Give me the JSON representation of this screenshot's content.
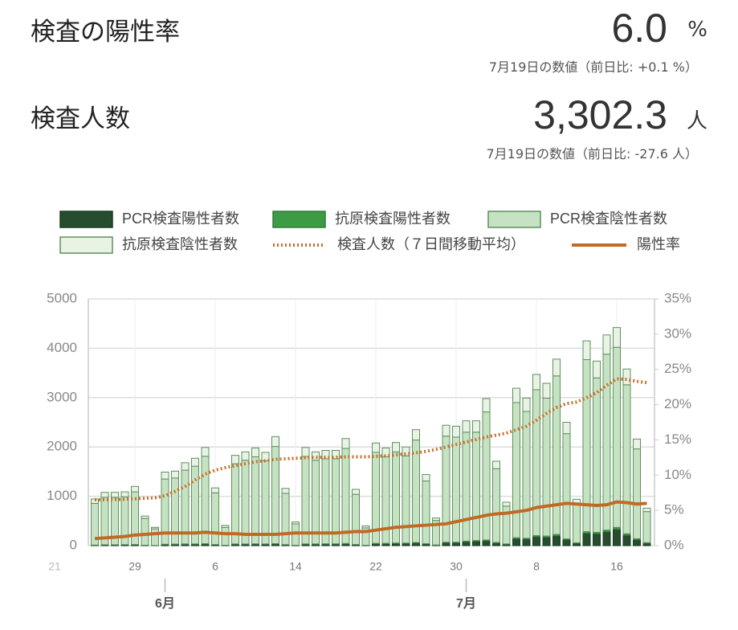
{
  "header": {
    "blocks": [
      {
        "title": "検査の陽性率",
        "value": "6.0",
        "unit": "%",
        "note": "7月19日の数値（前日比: +0.1 %）"
      },
      {
        "title": "検査人数",
        "value": "3,302.3",
        "unit": "人",
        "note": "7月19日の数値（前日比: -27.6 人）"
      }
    ]
  },
  "chart_data": {
    "type": "bar",
    "stacked": true,
    "categories": [
      "21",
      null,
      null,
      null,
      null,
      null,
      null,
      null,
      "29",
      null,
      null,
      null,
      null,
      null,
      null,
      null,
      "6",
      null,
      null,
      null,
      null,
      null,
      null,
      null,
      "14",
      null,
      null,
      null,
      null,
      null,
      null,
      null,
      "22",
      null,
      null,
      null,
      null,
      null,
      null,
      null,
      "30",
      null,
      null,
      null,
      null,
      null,
      null,
      null,
      "8",
      null,
      null,
      null,
      null,
      null,
      null,
      null,
      "16",
      null,
      null,
      null
    ],
    "months": [
      {
        "name": "6月",
        "start": 11
      },
      {
        "name": "7月",
        "start": 41
      }
    ],
    "series": [
      {
        "name": "PCR検査陽性者数",
        "type": "bar",
        "color": "#264d2e",
        "stroke": "#1c3a22",
        "values": [
          null,
          null,
          null,
          null,
          10,
          15,
          15,
          18,
          20,
          8,
          5,
          25,
          28,
          30,
          30,
          35,
          20,
          8,
          30,
          30,
          32,
          30,
          35,
          18,
          8,
          30,
          30,
          32,
          32,
          38,
          20,
          8,
          40,
          40,
          45,
          45,
          55,
          35,
          12,
          60,
          60,
          80,
          90,
          100,
          55,
          30,
          140,
          130,
          180,
          170,
          200,
          120,
          50,
          250,
          240,
          280,
          330,
          210,
          120,
          50
        ]
      },
      {
        "name": "抗原検査陽性者数",
        "type": "bar",
        "color": "#3d9a45",
        "stroke": "#2f7d36",
        "values": [
          null,
          null,
          null,
          null,
          2,
          3,
          3,
          3,
          3,
          1,
          1,
          4,
          4,
          5,
          5,
          5,
          3,
          1,
          5,
          5,
          5,
          5,
          6,
          3,
          1,
          6,
          6,
          6,
          6,
          7,
          4,
          1,
          8,
          8,
          8,
          8,
          10,
          6,
          2,
          10,
          10,
          12,
          14,
          15,
          10,
          5,
          20,
          20,
          25,
          25,
          28,
          18,
          8,
          35,
          30,
          35,
          40,
          30,
          20,
          10
        ]
      },
      {
        "name": "PCR検査陰性者数",
        "type": "bar",
        "color": "#c5e3c3",
        "stroke": "#5f8f5c",
        "values": [
          null,
          null,
          null,
          null,
          843,
          962,
          962,
          969,
          1067,
          541,
          334,
          1321,
          1338,
          1495,
          1575,
          1770,
          1047,
          361,
          1625,
          1695,
          1763,
          1685,
          1969,
          1039,
          431,
          1774,
          1694,
          1722,
          1722,
          1925,
          1016,
          351,
          1842,
          1752,
          1847,
          1767,
          2075,
          1269,
          496,
          2150,
          2130,
          2208,
          2196,
          2595,
          1495,
          765,
          2740,
          2570,
          2955,
          2795,
          3212,
          2132,
          792,
          3485,
          3130,
          3565,
          3650,
          3020,
          1820,
          630
        ]
      },
      {
        "name": "抗原検査陰性者数",
        "type": "bar",
        "color": "#e8f3e6",
        "stroke": "#5f8f5c",
        "values": [
          null,
          null,
          null,
          null,
          90,
          100,
          100,
          100,
          110,
          50,
          30,
          140,
          140,
          150,
          160,
          180,
          100,
          40,
          170,
          170,
          180,
          170,
          200,
          100,
          40,
          180,
          170,
          170,
          170,
          200,
          100,
          40,
          190,
          180,
          190,
          180,
          210,
          130,
          50,
          220,
          220,
          230,
          230,
          270,
          150,
          80,
          290,
          270,
          310,
          300,
          340,
          230,
          90,
          380,
          340,
          390,
          400,
          320,
          200,
          70
        ]
      },
      {
        "name": "検査人数（７日間移動平均）",
        "type": "line",
        "style": "dotted",
        "color": "#c8702a",
        "values": [
          null,
          null,
          null,
          null,
          930,
          930,
          935,
          940,
          950,
          960,
          970,
          1010,
          1100,
          1200,
          1330,
          1450,
          1530,
          1580,
          1620,
          1660,
          1700,
          1720,
          1750,
          1760,
          1770,
          1780,
          1790,
          1790,
          1790,
          1800,
          1800,
          1800,
          1810,
          1820,
          1840,
          1860,
          1880,
          1910,
          1950,
          2000,
          2050,
          2100,
          2150,
          2200,
          2240,
          2280,
          2350,
          2420,
          2540,
          2680,
          2800,
          2880,
          2910,
          3000,
          3100,
          3250,
          3380,
          3370,
          3330,
          3302.3
        ]
      },
      {
        "name": "陽性率",
        "type": "line",
        "style": "solid",
        "color": "#c06a25",
        "axis": "y2",
        "values": [
          null,
          null,
          null,
          null,
          1.0,
          1.1,
          1.2,
          1.3,
          1.5,
          1.6,
          1.7,
          1.8,
          1.8,
          1.8,
          1.8,
          1.9,
          1.8,
          1.7,
          1.7,
          1.6,
          1.6,
          1.6,
          1.6,
          1.7,
          1.8,
          1.8,
          1.8,
          1.8,
          1.8,
          1.9,
          2.0,
          2.0,
          2.2,
          2.4,
          2.6,
          2.7,
          2.8,
          2.9,
          3.0,
          3.1,
          3.4,
          3.7,
          4.0,
          4.3,
          4.5,
          4.6,
          4.8,
          5.0,
          5.4,
          5.6,
          5.8,
          6.0,
          5.9,
          5.8,
          5.7,
          5.8,
          6.2,
          6.1,
          5.9,
          6.0
        ]
      }
    ],
    "ylim": [
      0,
      5000
    ],
    "yticks": [
      0,
      1000,
      2000,
      3000,
      4000,
      5000
    ],
    "y2lim": [
      0,
      35
    ],
    "y2ticks": [
      {
        "value": 0,
        "label": "0%"
      },
      {
        "value": 5,
        "label": "5%"
      },
      {
        "value": 10,
        "label": "10%"
      },
      {
        "value": 15,
        "label": "15%"
      },
      {
        "value": 20,
        "label": "20%"
      },
      {
        "value": 25,
        "label": "25%"
      },
      {
        "value": 30,
        "label": "30%"
      },
      {
        "value": 35,
        "label": "35%"
      }
    ],
    "grid": true
  }
}
